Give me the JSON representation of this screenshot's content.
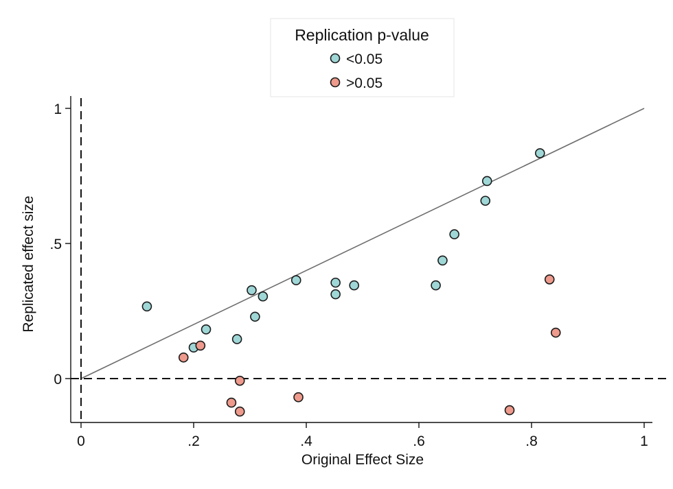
{
  "chart_data": {
    "type": "scatter",
    "xlabel": "Original Effect Size",
    "ylabel": "Replicated effect size",
    "xlim": [
      0,
      1
    ],
    "ylim": [
      -0.16,
      1
    ],
    "x_ticks": [
      0,
      0.2,
      0.4,
      0.6,
      0.8,
      1
    ],
    "x_tick_labels": [
      "0",
      ".2",
      ".4",
      ".6",
      ".8",
      "1"
    ],
    "y_ticks": [
      0,
      0.5,
      1
    ],
    "y_tick_labels": [
      "0",
      ".5",
      "1"
    ],
    "reference_lines": {
      "diagonal": true,
      "x_zero_dashed": true,
      "y_zero_dashed": true
    },
    "legend": {
      "title": "Replication p-value",
      "position": "top-center",
      "entries": [
        "<0.05",
        ">0.05"
      ]
    },
    "series": [
      {
        "name": "<0.05",
        "color": "#9fd6d6",
        "points": [
          {
            "x": 0.117,
            "y": 0.267
          },
          {
            "x": 0.2,
            "y": 0.115
          },
          {
            "x": 0.222,
            "y": 0.182
          },
          {
            "x": 0.277,
            "y": 0.146
          },
          {
            "x": 0.303,
            "y": 0.327
          },
          {
            "x": 0.309,
            "y": 0.229
          },
          {
            "x": 0.323,
            "y": 0.304
          },
          {
            "x": 0.382,
            "y": 0.364
          },
          {
            "x": 0.452,
            "y": 0.355
          },
          {
            "x": 0.452,
            "y": 0.312
          },
          {
            "x": 0.485,
            "y": 0.345
          },
          {
            "x": 0.63,
            "y": 0.345
          },
          {
            "x": 0.642,
            "y": 0.437
          },
          {
            "x": 0.663,
            "y": 0.534
          },
          {
            "x": 0.718,
            "y": 0.658
          },
          {
            "x": 0.721,
            "y": 0.731
          },
          {
            "x": 0.815,
            "y": 0.834
          }
        ]
      },
      {
        "name": ">0.05",
        "color": "#ee9a8c",
        "points": [
          {
            "x": 0.182,
            "y": 0.078
          },
          {
            "x": 0.212,
            "y": 0.122
          },
          {
            "x": 0.267,
            "y": -0.089
          },
          {
            "x": 0.282,
            "y": -0.008
          },
          {
            "x": 0.282,
            "y": -0.122
          },
          {
            "x": 0.386,
            "y": -0.069
          },
          {
            "x": 0.761,
            "y": -0.117
          },
          {
            "x": 0.832,
            "y": 0.367
          },
          {
            "x": 0.843,
            "y": 0.17
          }
        ]
      }
    ]
  }
}
